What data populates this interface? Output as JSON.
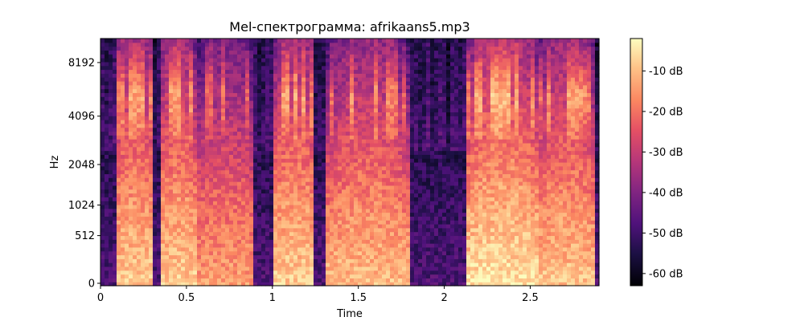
{
  "chart_data": {
    "type": "heatmap",
    "title": "Mel-спектрограмма: afrikaans5.mp3",
    "xlabel": "Time",
    "ylabel": "Hz",
    "xlim": [
      0,
      2.9
    ],
    "x_ticks": [
      {
        "value": 0,
        "label": "0"
      },
      {
        "value": 0.5,
        "label": "0.5"
      },
      {
        "value": 1,
        "label": "1"
      },
      {
        "value": 1.5,
        "label": "1.5"
      },
      {
        "value": 2,
        "label": "2"
      },
      {
        "value": 2.5,
        "label": "2.5"
      }
    ],
    "y_scale": "mel",
    "y_ticks": [
      {
        "value": 0,
        "label": "0"
      },
      {
        "value": 512,
        "label": "512"
      },
      {
        "value": 1024,
        "label": "1024"
      },
      {
        "value": 2048,
        "label": "2048"
      },
      {
        "value": 4096,
        "label": "4096"
      },
      {
        "value": 8192,
        "label": "8192"
      }
    ],
    "colormap": "magma",
    "colorbar": {
      "range_db": [
        -63,
        -2
      ],
      "ticks": [
        {
          "value": -10,
          "label": "-10 dB"
        },
        {
          "value": -20,
          "label": "-20 dB"
        },
        {
          "value": -30,
          "label": "-30 dB"
        },
        {
          "value": -40,
          "label": "-40 dB"
        },
        {
          "value": -50,
          "label": "-50 dB"
        },
        {
          "value": -60,
          "label": "-60 dB"
        }
      ]
    },
    "energy_segments": [
      {
        "t_start": 0.1,
        "t_end": 0.3,
        "peak_db": -8
      },
      {
        "t_start": 0.35,
        "t_end": 0.55,
        "peak_db": -8
      },
      {
        "t_start": 0.55,
        "t_end": 0.9,
        "peak_db": -14
      },
      {
        "t_start": 1.0,
        "t_end": 1.25,
        "peak_db": -8
      },
      {
        "t_start": 1.3,
        "t_end": 1.8,
        "peak_db": -10
      },
      {
        "t_start": 2.12,
        "t_end": 2.55,
        "peak_db": -5
      },
      {
        "t_start": 2.55,
        "t_end": 2.88,
        "peak_db": -9
      }
    ]
  }
}
